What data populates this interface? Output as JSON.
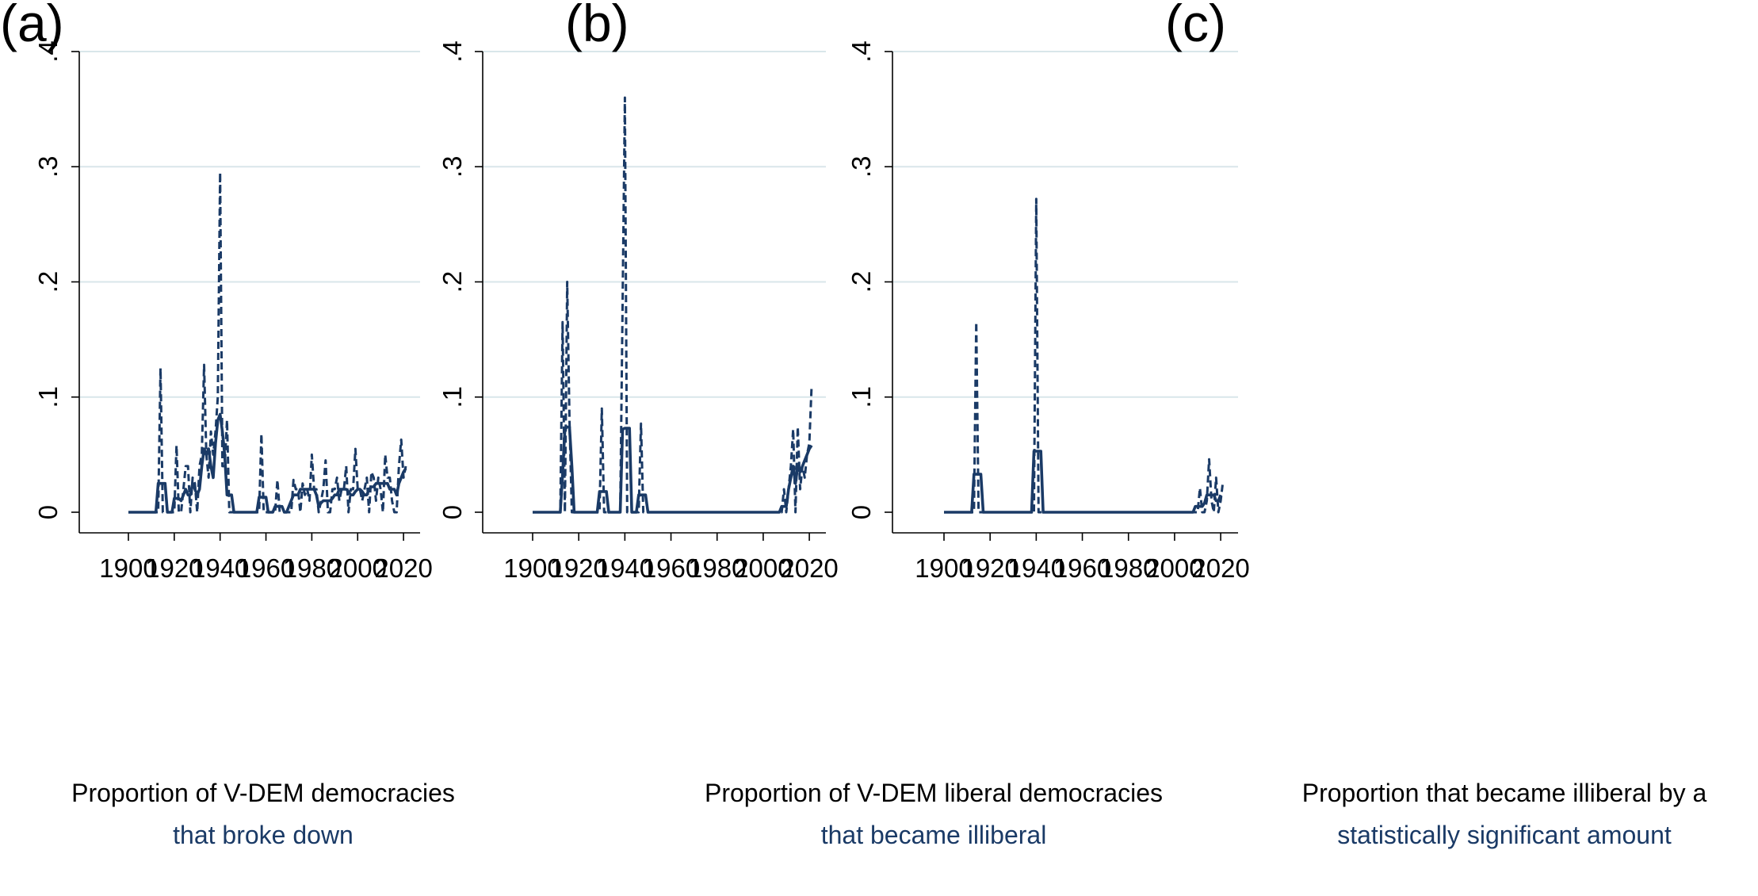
{
  "colors": {
    "series": "#1a3a66",
    "grid": "#d9e6ea",
    "axis": "#000000",
    "caption_second_line": "#1a3a66"
  },
  "chart_data": [
    {
      "panel": "(a)",
      "type": "line",
      "caption_line1": "Proportion of V-DEM democracies",
      "caption_line2": "that broke down",
      "xlim": [
        1900,
        2021
      ],
      "ylim": [
        0,
        0.4
      ],
      "xticks": [
        "1900",
        "1920",
        "1940",
        "1960",
        "1980",
        "2000",
        "2020"
      ],
      "yticks": [
        "0",
        ".1",
        ".2",
        ".3",
        ".4"
      ],
      "grid": "horizontal",
      "series": [
        {
          "style": "dashed",
          "x": [
            1900,
            1901,
            1902,
            1903,
            1904,
            1905,
            1906,
            1907,
            1908,
            1909,
            1910,
            1911,
            1912,
            1913,
            1914,
            1915,
            1916,
            1917,
            1918,
            1919,
            1920,
            1921,
            1922,
            1923,
            1924,
            1925,
            1926,
            1927,
            1928,
            1929,
            1930,
            1931,
            1932,
            1933,
            1934,
            1935,
            1936,
            1937,
            1938,
            1939,
            1940,
            1941,
            1942,
            1943,
            1944,
            1945,
            1946,
            1947,
            1948,
            1949,
            1950,
            1951,
            1952,
            1953,
            1954,
            1955,
            1956,
            1957,
            1958,
            1959,
            1960,
            1961,
            1962,
            1963,
            1964,
            1965,
            1966,
            1967,
            1968,
            1969,
            1970,
            1971,
            1972,
            1973,
            1974,
            1975,
            1976,
            1977,
            1978,
            1979,
            1980,
            1981,
            1982,
            1983,
            1984,
            1985,
            1986,
            1987,
            1988,
            1989,
            1990,
            1991,
            1992,
            1993,
            1994,
            1995,
            1996,
            1997,
            1998,
            1999,
            2000,
            2001,
            2002,
            2003,
            2004,
            2005,
            2006,
            2007,
            2008,
            2009,
            2010,
            2011,
            2012,
            2013,
            2014,
            2015,
            2016,
            2017,
            2018,
            2019,
            2020,
            2021
          ],
          "y": [
            0,
            0,
            0,
            0,
            0,
            0,
            0,
            0,
            0,
            0,
            0,
            0,
            0,
            0,
            0.125,
            0,
            0,
            0,
            0,
            0,
            0,
            0.058,
            0,
            0,
            0.02,
            0.04,
            0.04,
            0,
            0.03,
            0.025,
            0,
            0.04,
            0.05,
            0.128,
            0.05,
            0.03,
            0.07,
            0.05,
            0.07,
            0.1,
            0.295,
            0.04,
            0.04,
            0.08,
            0,
            0,
            0,
            0,
            0,
            0,
            0,
            0,
            0,
            0,
            0,
            0,
            0,
            0,
            0.068,
            0,
            0,
            0,
            0,
            0,
            0,
            0.028,
            0,
            0,
            0,
            0,
            0,
            0,
            0.028,
            0.02,
            0.02,
            0,
            0.025,
            0.015,
            0.02,
            0.01,
            0.05,
            0.02,
            0.02,
            0,
            0.01,
            0.02,
            0.045,
            0,
            0,
            0.02,
            0.02,
            0.03,
            0.01,
            0.02,
            0.02,
            0.04,
            0,
            0.02,
            0.02,
            0.055,
            0.02,
            0.02,
            0.01,
            0.02,
            0.03,
            0,
            0.035,
            0.03,
            0.01,
            0.03,
            0.02,
            0,
            0.05,
            0.03,
            0.03,
            0.01,
            0,
            0,
            0.04,
            0.063,
            0.03,
            0.04
          ]
        },
        {
          "style": "solid",
          "x": [
            1900,
            1901,
            1902,
            1903,
            1904,
            1905,
            1906,
            1907,
            1908,
            1909,
            1910,
            1911,
            1912,
            1913,
            1914,
            1915,
            1916,
            1917,
            1918,
            1919,
            1920,
            1921,
            1922,
            1923,
            1924,
            1925,
            1926,
            1927,
            1928,
            1929,
            1930,
            1931,
            1932,
            1933,
            1934,
            1935,
            1936,
            1937,
            1938,
            1939,
            1940,
            1941,
            1942,
            1943,
            1944,
            1945,
            1946,
            1947,
            1948,
            1949,
            1950,
            1951,
            1952,
            1953,
            1954,
            1955,
            1956,
            1957,
            1958,
            1959,
            1960,
            1961,
            1962,
            1963,
            1964,
            1965,
            1966,
            1967,
            1968,
            1969,
            1970,
            1971,
            1972,
            1973,
            1974,
            1975,
            1976,
            1977,
            1978,
            1979,
            1980,
            1981,
            1982,
            1983,
            1984,
            1985,
            1986,
            1987,
            1988,
            1989,
            1990,
            1991,
            1992,
            1993,
            1994,
            1995,
            1996,
            1997,
            1998,
            1999,
            2000,
            2001,
            2002,
            2003,
            2004,
            2005,
            2006,
            2007,
            2008,
            2009,
            2010,
            2011,
            2012,
            2013,
            2014,
            2015,
            2016,
            2017,
            2018,
            2019,
            2020,
            2021
          ],
          "y": [
            0,
            0,
            0,
            0,
            0,
            0,
            0,
            0,
            0,
            0,
            0,
            0,
            0,
            0.025,
            0.025,
            0.025,
            0.025,
            0,
            0,
            0,
            0.012,
            0.012,
            0.012,
            0.01,
            0.015,
            0.02,
            0.015,
            0.015,
            0.025,
            0.02,
            0.015,
            0.02,
            0.04,
            0.055,
            0.05,
            0.055,
            0.04,
            0.03,
            0.06,
            0.08,
            0.085,
            0.07,
            0.05,
            0.015,
            0.015,
            0.015,
            0,
            0,
            0,
            0,
            0,
            0,
            0,
            0,
            0,
            0,
            0,
            0.013,
            0.013,
            0.013,
            0.013,
            0,
            0,
            0,
            0.005,
            0.005,
            0.005,
            0.005,
            0,
            0,
            0.005,
            0.01,
            0.015,
            0.015,
            0.015,
            0.02,
            0.02,
            0.02,
            0.02,
            0.02,
            0.02,
            0.02,
            0.015,
            0.005,
            0.008,
            0.01,
            0.01,
            0.01,
            0.01,
            0.012,
            0.015,
            0.015,
            0.02,
            0.02,
            0.02,
            0.02,
            0.018,
            0.015,
            0.015,
            0.018,
            0.02,
            0.02,
            0.018,
            0.015,
            0.015,
            0.02,
            0.022,
            0.022,
            0.025,
            0.025,
            0.025,
            0.025,
            0.025,
            0.025,
            0.02,
            0.02,
            0.02,
            0.015,
            0.025,
            0.03,
            0.035,
            0.038
          ]
        }
      ]
    },
    {
      "panel": "(b)",
      "type": "line",
      "caption_line1": "Proportion of V-DEM liberal democracies",
      "caption_line2": "that became illiberal",
      "xlim": [
        1900,
        2021
      ],
      "ylim": [
        0,
        0.4
      ],
      "xticks": [
        "1900",
        "1920",
        "1940",
        "1960",
        "1980",
        "2000",
        "2020"
      ],
      "yticks": [
        "0",
        ".1",
        ".2",
        ".3",
        ".4"
      ],
      "grid": "horizontal",
      "series": [
        {
          "style": "dashed",
          "x": [
            1900,
            1912,
            1913,
            1914,
            1915,
            1916,
            1917,
            1918,
            1929,
            1930,
            1931,
            1932,
            1938,
            1939,
            1940,
            1941,
            1942,
            1945,
            1946,
            1947,
            1948,
            1949,
            2008,
            2009,
            2010,
            2011,
            2012,
            2013,
            2014,
            2015,
            2016,
            2017,
            2018,
            2019,
            2020,
            2021
          ],
          "y": [
            0,
            0,
            0.165,
            0,
            0.2,
            0.08,
            0,
            0,
            0,
            0.09,
            0,
            0,
            0,
            0.18,
            0.36,
            0,
            0,
            0,
            0,
            0.077,
            0,
            0,
            0,
            0.02,
            0,
            0.02,
            0.04,
            0.072,
            0,
            0.074,
            0.02,
            0.04,
            0.03,
            0.05,
            0.06,
            0.11
          ]
        },
        {
          "style": "solid",
          "x": [
            1900,
            1912,
            1913,
            1914,
            1915,
            1916,
            1917,
            1918,
            1928,
            1929,
            1930,
            1931,
            1932,
            1933,
            1938,
            1939,
            1940,
            1941,
            1942,
            1943,
            1945,
            1946,
            1947,
            1948,
            1949,
            1950,
            2007,
            2008,
            2009,
            2010,
            2011,
            2012,
            2013,
            2014,
            2015,
            2016,
            2017,
            2018,
            2019,
            2020,
            2021
          ],
          "y": [
            0,
            0,
            0.033,
            0.072,
            0.074,
            0.074,
            0.04,
            0,
            0,
            0.018,
            0.018,
            0.018,
            0.018,
            0,
            0,
            0.072,
            0.073,
            0.073,
            0.073,
            0,
            0,
            0.015,
            0.015,
            0.015,
            0.015,
            0,
            0,
            0.005,
            0.005,
            0.005,
            0.02,
            0.03,
            0.04,
            0.025,
            0.04,
            0.035,
            0.04,
            0.045,
            0.05,
            0.055,
            0.058
          ]
        }
      ]
    },
    {
      "panel": "(c)",
      "type": "line",
      "caption_line1": "Proportion that became illiberal by a",
      "caption_line2": "statistically significant amount",
      "xlim": [
        1900,
        2021
      ],
      "ylim": [
        0,
        0.4
      ],
      "xticks": [
        "1900",
        "1920",
        "1940",
        "1960",
        "1980",
        "2000",
        "2020"
      ],
      "yticks": [
        "0",
        ".1",
        ".2",
        ".3",
        ".4"
      ],
      "grid": "horizontal",
      "series": [
        {
          "style": "dashed",
          "x": [
            1900,
            1912,
            1913,
            1914,
            1915,
            1916,
            1938,
            1939,
            1940,
            1941,
            1942,
            2009,
            2010,
            2011,
            2012,
            2013,
            2014,
            2015,
            2016,
            2017,
            2018,
            2019,
            2020,
            2021
          ],
          "y": [
            0,
            0,
            0,
            0.165,
            0,
            0,
            0,
            0,
            0.272,
            0,
            0,
            0,
            0,
            0.021,
            0,
            0,
            0.01,
            0.046,
            0.01,
            0,
            0.03,
            0,
            0.01,
            0.027
          ]
        },
        {
          "style": "solid",
          "x": [
            1900,
            1912,
            1913,
            1914,
            1915,
            1916,
            1917,
            1938,
            1939,
            1940,
            1941,
            1942,
            1943,
            2008,
            2009,
            2010,
            2011,
            2012,
            2013,
            2014,
            2015,
            2016,
            2017,
            2018,
            2019,
            2020
          ],
          "y": [
            0,
            0,
            0.033,
            0.033,
            0.033,
            0.033,
            0,
            0,
            0.053,
            0.053,
            0.053,
            0.053,
            0,
            0,
            0.005,
            0.005,
            0.005,
            0.005,
            0.008,
            0.015,
            0.015,
            0.015,
            0.015,
            0.01,
            0.01,
            0.015
          ]
        }
      ]
    }
  ]
}
